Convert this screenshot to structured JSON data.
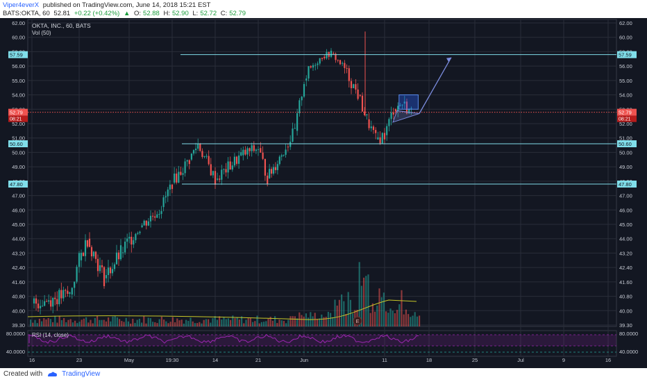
{
  "header": {
    "author": "Viper4everX",
    "published": " published on TradingView.com, June 14, 2018 15:21 EST",
    "symbol": "BATS:OKTA, 60",
    "last": "52.81",
    "change": "+0.22 (+0.42%)",
    "o_label": "O:",
    "o": "52.88",
    "h_label": "H:",
    "h": "52.90",
    "l_label": "L:",
    "l": "52.72",
    "c_label": "C:",
    "c": "52.79"
  },
  "footer": {
    "created": "Created with",
    "brand": "TradingView"
  },
  "colors": {
    "background": "#131722",
    "grid": "#2a2e39",
    "up": "#26a69a",
    "down": "#ef5350",
    "level_line": "#80deea",
    "vol_ma": "#c8c828",
    "rsi": "#9c27b0",
    "drawing": "#7b8cde",
    "label_box": "#80deea",
    "current_box": "#ef5350"
  },
  "chart_data": [
    {
      "type": "candlestick",
      "title": "OKTA, INC., 60, BATS",
      "indicator_label": "Vol (50)",
      "y_ticks": [
        "62.00",
        "60.00",
        "58.00",
        "56.00",
        "55.00",
        "54.00",
        "53.00",
        "52.00",
        "51.00",
        "50.00",
        "49.00",
        "48.00",
        "47.00",
        "46.00",
        "45.00",
        "44.00",
        "43.20",
        "42.40",
        "41.60",
        "40.80",
        "40.00",
        "39.30"
      ],
      "ylim": [
        39.3,
        62.0
      ],
      "x_ticks": [
        "16",
        "23",
        "May",
        "19:30",
        "14",
        "21",
        "Jun",
        "11",
        "18",
        "25",
        "Jul",
        "9",
        "16"
      ],
      "horizontal_levels": [
        {
          "label": "57.59",
          "value": 57.59
        },
        {
          "label": "50.60",
          "value": 50.6
        },
        {
          "label": "47.80",
          "value": 47.8
        }
      ],
      "current_price": {
        "label": "52.79",
        "value": 52.79,
        "countdown": "08:21"
      },
      "close_path": [
        {
          "x": "Apr 16",
          "price": 40.4
        },
        {
          "x": "Apr 20",
          "price": 40.9
        },
        {
          "x": "Apr 23",
          "price": 42.8
        },
        {
          "x": "Apr 24",
          "price": 44.0
        },
        {
          "x": "Apr 26",
          "price": 41.8
        },
        {
          "x": "Apr 30",
          "price": 43.2
        },
        {
          "x": "May 2",
          "price": 44.8
        },
        {
          "x": "May 4",
          "price": 46.2
        },
        {
          "x": "May 7",
          "price": 47.9
        },
        {
          "x": "May 9",
          "price": 49.5
        },
        {
          "x": "May 10",
          "price": 50.6
        },
        {
          "x": "May 14",
          "price": 48.1
        },
        {
          "x": "May 17",
          "price": 49.8
        },
        {
          "x": "May 21",
          "price": 50.3
        },
        {
          "x": "May 22",
          "price": 48.2
        },
        {
          "x": "May 24",
          "price": 50.4
        },
        {
          "x": "May 25",
          "price": 51.5
        },
        {
          "x": "May 29",
          "price": 55.0
        },
        {
          "x": "May 31",
          "price": 57.3
        },
        {
          "x": "Jun 1",
          "price": 57.8
        },
        {
          "x": "Jun 4",
          "price": 56.4
        },
        {
          "x": "Jun 6",
          "price": 54.0
        },
        {
          "x": "Jun 7",
          "price": 52.3
        },
        {
          "x": "Jun 8",
          "price": 50.9
        },
        {
          "x": "Jun 11",
          "price": 51.2
        },
        {
          "x": "Jun 12",
          "price": 53.0
        },
        {
          "x": "Jun 13",
          "price": 53.4
        },
        {
          "x": "Jun 14",
          "price": 52.79
        }
      ],
      "drawings": [
        {
          "kind": "rectangle",
          "from": "Jun 12",
          "to": "Jun 14",
          "top": 54.0,
          "bottom": 53.0
        },
        {
          "kind": "arrow",
          "from_date": "Jun 14",
          "from_price": 52.7,
          "to_date": "Jun 20",
          "to_price": 57.2
        }
      ],
      "volume_note": "volume bars with moving average (50)",
      "earnings_marker": "E"
    },
    {
      "type": "line",
      "title": "RSI (14, close)",
      "y_ticks": [
        "80.0000",
        "40.0000"
      ]
    }
  ]
}
